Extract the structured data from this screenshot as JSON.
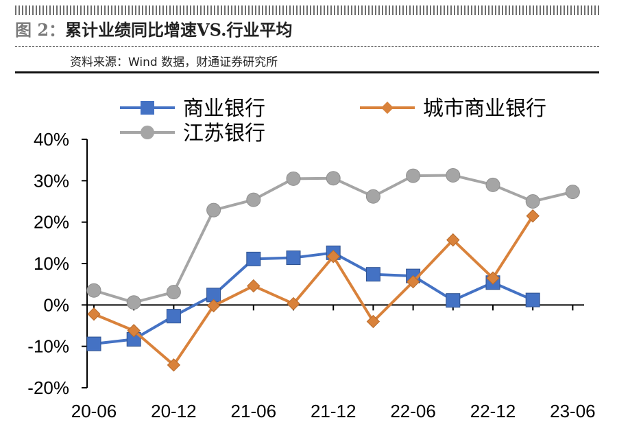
{
  "header": {
    "title_prefix": "图 2：",
    "title_text": "累计业绩同比增速VS.行业平均",
    "source": "资料来源：Wind 数据，财通证券研究所"
  },
  "chart_data": {
    "type": "line",
    "title": "累计业绩同比增速VS.行业平均",
    "x": [
      "20-06",
      "20-09",
      "20-12",
      "21-03",
      "21-06",
      "21-09",
      "21-12",
      "22-03",
      "22-06",
      "22-09",
      "22-12",
      "23-03",
      "23-06"
    ],
    "x_tick_labels": [
      "20-06",
      "20-12",
      "21-06",
      "21-12",
      "22-06",
      "22-12",
      "23-06"
    ],
    "y_tick_labels": [
      "40%",
      "30%",
      "20%",
      "10%",
      "0%",
      "-10%",
      "-20%"
    ],
    "ylim": [
      -20,
      40
    ],
    "y_unit": "%",
    "grid": false,
    "legend_position": "top",
    "series": [
      {
        "name": "商业银行",
        "color": "#4472C4",
        "marker": "square",
        "values": [
          -9.4,
          -8.3,
          -2.7,
          2.4,
          11.1,
          11.4,
          12.6,
          7.4,
          7.0,
          1.1,
          5.4,
          1.2,
          null
        ]
      },
      {
        "name": "城市商业银行",
        "color": "#D9823B",
        "marker": "diamond",
        "values": [
          -2.2,
          -6.2,
          -14.5,
          -0.2,
          4.6,
          0.3,
          11.7,
          -4.0,
          5.6,
          15.7,
          6.5,
          21.5,
          null
        ]
      },
      {
        "name": "江苏银行",
        "color": "#A5A5A5",
        "marker": "circle",
        "values": [
          3.5,
          0.6,
          3.1,
          22.9,
          25.4,
          30.5,
          30.6,
          26.2,
          31.2,
          31.3,
          29.0,
          25.0,
          27.3
        ]
      }
    ]
  }
}
